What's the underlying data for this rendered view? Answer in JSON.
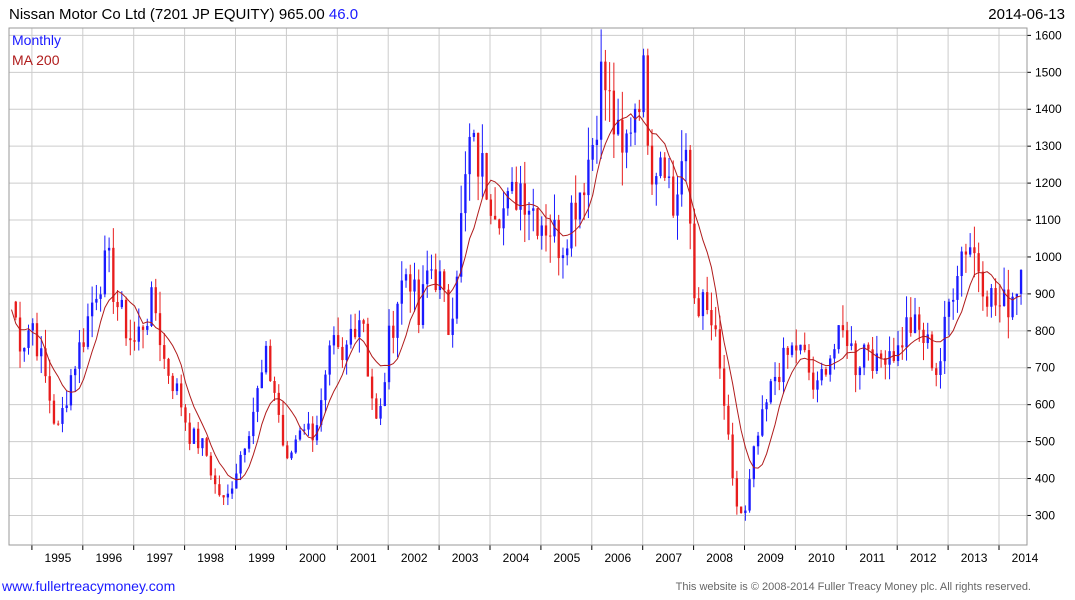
{
  "header": {
    "title": "Nissan Motor Co Ltd (7201 JP EQUITY) 965.00",
    "change": "46.0",
    "date": "2014-06-13"
  },
  "footer": {
    "site": "www.fullertreacymoney.com",
    "copyright": "This website is © 2008-2014 Fuller Treacy Money plc. All rights reserved."
  },
  "colors": {
    "up": "#1a1aff",
    "down": "#e81c1c",
    "ma": "#b01c1c",
    "grid": "#cccccc"
  },
  "chart_data": {
    "type": "candlestick",
    "title": "Nissan Motor Co Ltd (7201 JP EQUITY) 965.00",
    "legend": [
      {
        "label": "Monthly",
        "color": "#1a1aff"
      },
      {
        "label": "MA 200",
        "color": "#b01c1c"
      }
    ],
    "legend_placement": "top-left",
    "y_ticks": [
      300,
      400,
      500,
      600,
      700,
      800,
      900,
      1000,
      1100,
      1200,
      1300,
      1400,
      1500,
      1600
    ],
    "ylim": [
      220,
      1620
    ],
    "y_axis_side": "right",
    "x_ticks": [
      "1995",
      "1996",
      "1997",
      "1998",
      "1999",
      "2000",
      "2001",
      "2002",
      "2003",
      "2004",
      "2005",
      "2006",
      "2007",
      "2008",
      "2009",
      "2010",
      "2011",
      "2012",
      "2013",
      "2014"
    ],
    "xlim": [
      1994.55,
      2014.55
    ],
    "grid": true,
    "price_keyframes": [
      [
        1994.6,
        880
      ],
      [
        1994.8,
        760
      ],
      [
        1995.0,
        830
      ],
      [
        1995.3,
        650
      ],
      [
        1995.5,
        520
      ],
      [
        1995.8,
        700
      ],
      [
        1996.0,
        780
      ],
      [
        1996.3,
        940
      ],
      [
        1996.5,
        980
      ],
      [
        1996.7,
        860
      ],
      [
        1997.0,
        760
      ],
      [
        1997.2,
        830
      ],
      [
        1997.4,
        880
      ],
      [
        1997.6,
        720
      ],
      [
        1997.9,
        620
      ],
      [
        1998.1,
        520
      ],
      [
        1998.4,
        480
      ],
      [
        1998.6,
        380
      ],
      [
        1998.8,
        330
      ],
      [
        1999.0,
        420
      ],
      [
        1999.3,
        560
      ],
      [
        1999.6,
        720
      ],
      [
        1999.8,
        620
      ],
      [
        2000.0,
        430
      ],
      [
        2000.3,
        560
      ],
      [
        2000.5,
        520
      ],
      [
        2000.7,
        600
      ],
      [
        2000.9,
        760
      ],
      [
        2001.1,
        700
      ],
      [
        2001.3,
        820
      ],
      [
        2001.5,
        860
      ],
      [
        2001.6,
        700
      ],
      [
        2001.8,
        520
      ],
      [
        2002.0,
        760
      ],
      [
        2002.2,
        900
      ],
      [
        2002.4,
        980
      ],
      [
        2002.6,
        820
      ],
      [
        2002.8,
        980
      ],
      [
        2003.0,
        940
      ],
      [
        2003.2,
        800
      ],
      [
        2003.4,
        1050
      ],
      [
        2003.6,
        1300
      ],
      [
        2003.8,
        1250
      ],
      [
        2004.0,
        1180
      ],
      [
        2004.3,
        1120
      ],
      [
        2004.6,
        1200
      ],
      [
        2004.9,
        1120
      ],
      [
        2005.2,
        1080
      ],
      [
        2005.4,
        1030
      ],
      [
        2005.6,
        1130
      ],
      [
        2005.8,
        1200
      ],
      [
        2006.0,
        1300
      ],
      [
        2006.2,
        1500
      ],
      [
        2006.4,
        1380
      ],
      [
        2006.6,
        1250
      ],
      [
        2006.8,
        1400
      ],
      [
        2007.0,
        1500
      ],
      [
        2007.2,
        1240
      ],
      [
        2007.4,
        1320
      ],
      [
        2007.6,
        1120
      ],
      [
        2007.8,
        1280
      ],
      [
        2007.9,
        1180
      ],
      [
        2008.0,
        900
      ],
      [
        2008.2,
        860
      ],
      [
        2008.4,
        800
      ],
      [
        2008.6,
        600
      ],
      [
        2008.8,
        340
      ],
      [
        2009.0,
        290
      ],
      [
        2009.2,
        480
      ],
      [
        2009.4,
        580
      ],
      [
        2009.6,
        680
      ],
      [
        2009.8,
        720
      ],
      [
        2010.0,
        760
      ],
      [
        2010.2,
        720
      ],
      [
        2010.4,
        620
      ],
      [
        2010.6,
        720
      ],
      [
        2010.8,
        760
      ],
      [
        2011.0,
        800
      ],
      [
        2011.2,
        700
      ],
      [
        2011.4,
        780
      ],
      [
        2011.6,
        700
      ],
      [
        2011.8,
        760
      ],
      [
        2012.0,
        740
      ],
      [
        2012.2,
        820
      ],
      [
        2012.4,
        800
      ],
      [
        2012.6,
        760
      ],
      [
        2012.8,
        680
      ],
      [
        2013.0,
        860
      ],
      [
        2013.2,
        1000
      ],
      [
        2013.4,
        1050
      ],
      [
        2013.6,
        980
      ],
      [
        2013.8,
        900
      ],
      [
        2014.0,
        860
      ],
      [
        2014.2,
        880
      ],
      [
        2014.45,
        965
      ]
    ]
  }
}
